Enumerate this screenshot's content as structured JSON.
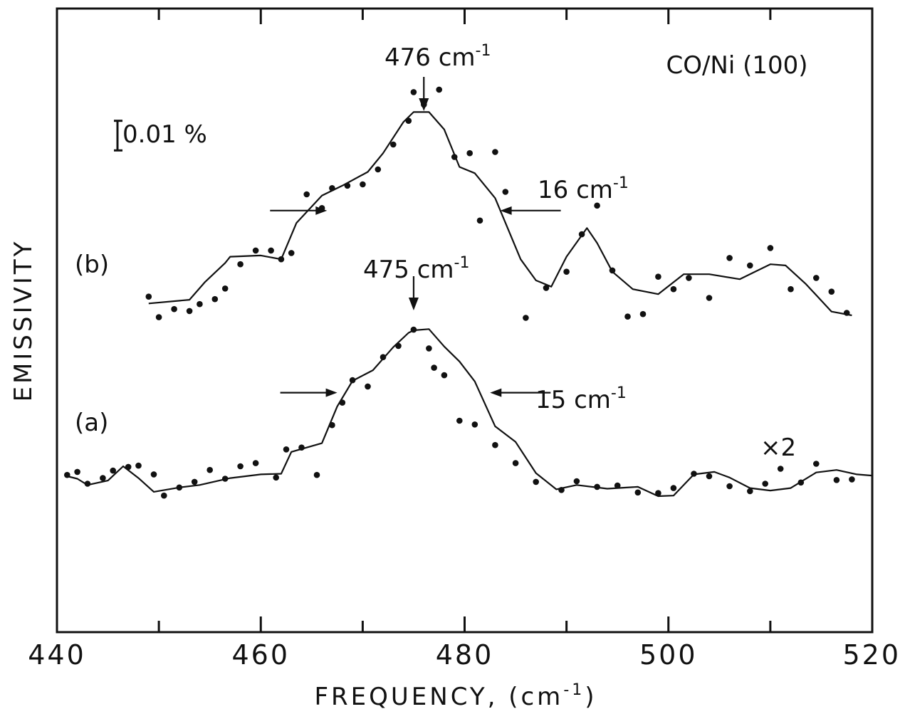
{
  "chart_data": {
    "type": "line",
    "title": "CO/Ni (100)",
    "xlabel": "FREQUENCY, (cm",
    "xlabel_sup": "-1",
    "xlabel_close": ")",
    "ylabel": "EMISSIVITY",
    "xlim": [
      440,
      520
    ],
    "ylim": [
      0,
      1
    ],
    "x_ticks": [
      "440",
      "460",
      "480",
      "500",
      "520"
    ],
    "x_tick_values": [
      440,
      460,
      480,
      500,
      520
    ],
    "x_minor_ticks": [
      450,
      470,
      490,
      510
    ],
    "grid": false,
    "scale_bar_label": "0.01 %",
    "scale_bar_value": 0.0475,
    "series": [
      {
        "name": "(b)",
        "peak_label": "476 cm",
        "peak_sup": "-1",
        "peak_x": 476,
        "width_label": "16 cm",
        "width_sup": "-1",
        "width_left_x": 466.5,
        "width_right_x": 483.5,
        "width_y": 0.676,
        "line": [
          [
            449,
            0.527
          ],
          [
            453,
            0.533
          ],
          [
            454.5,
            0.561
          ],
          [
            456.5,
            0.592
          ],
          [
            457,
            0.602
          ],
          [
            460,
            0.604
          ],
          [
            462,
            0.598
          ],
          [
            463.5,
            0.656
          ],
          [
            466,
            0.7
          ],
          [
            468,
            0.716
          ],
          [
            470.5,
            0.738
          ],
          [
            472,
            0.768
          ],
          [
            474,
            0.818
          ],
          [
            475,
            0.834
          ],
          [
            476.5,
            0.834
          ],
          [
            478,
            0.806
          ],
          [
            479.5,
            0.746
          ],
          [
            481,
            0.736
          ],
          [
            483,
            0.696
          ],
          [
            485.5,
            0.598
          ],
          [
            487,
            0.564
          ],
          [
            488.5,
            0.554
          ],
          [
            490,
            0.602
          ],
          [
            492,
            0.648
          ],
          [
            493,
            0.624
          ],
          [
            494.5,
            0.578
          ],
          [
            496.5,
            0.55
          ],
          [
            499,
            0.542
          ],
          [
            501.5,
            0.574
          ],
          [
            504,
            0.574
          ],
          [
            507,
            0.566
          ],
          [
            510,
            0.59
          ],
          [
            511.5,
            0.588
          ],
          [
            513.5,
            0.558
          ],
          [
            516,
            0.514
          ],
          [
            518,
            0.508
          ]
        ],
        "points": [
          [
            449,
            0.538
          ],
          [
            450,
            0.505
          ],
          [
            451.5,
            0.518
          ],
          [
            453,
            0.515
          ],
          [
            454,
            0.526
          ],
          [
            455.5,
            0.534
          ],
          [
            456.5,
            0.551
          ],
          [
            458,
            0.59
          ],
          [
            459.5,
            0.612
          ],
          [
            461,
            0.612
          ],
          [
            462,
            0.598
          ],
          [
            463,
            0.608
          ],
          [
            464.5,
            0.702
          ],
          [
            466,
            0.68
          ],
          [
            467,
            0.712
          ],
          [
            468.5,
            0.716
          ],
          [
            470,
            0.718
          ],
          [
            471.5,
            0.742
          ],
          [
            473,
            0.782
          ],
          [
            474.5,
            0.82
          ],
          [
            475,
            0.866
          ],
          [
            476,
            0.846
          ],
          [
            477.5,
            0.87
          ],
          [
            479,
            0.762
          ],
          [
            480.5,
            0.768
          ],
          [
            481.5,
            0.66
          ],
          [
            483,
            0.77
          ],
          [
            484,
            0.706
          ],
          [
            486,
            0.504
          ],
          [
            488,
            0.552
          ],
          [
            490,
            0.578
          ],
          [
            491.5,
            0.638
          ],
          [
            493,
            0.684
          ],
          [
            494.5,
            0.58
          ],
          [
            496,
            0.506
          ],
          [
            497.5,
            0.51
          ],
          [
            499,
            0.57
          ],
          [
            500.5,
            0.55
          ],
          [
            502,
            0.568
          ],
          [
            504,
            0.536
          ],
          [
            506,
            0.6
          ],
          [
            508,
            0.588
          ],
          [
            510,
            0.616
          ],
          [
            512,
            0.55
          ],
          [
            514.5,
            0.568
          ],
          [
            516,
            0.546
          ],
          [
            517.5,
            0.512
          ]
        ]
      },
      {
        "name": "(a)",
        "peak_label": "475 cm",
        "peak_sup": "-1",
        "peak_x": 475,
        "width_label": "15 cm",
        "width_sup": "-1",
        "width_left_x": 467.5,
        "width_right_x": 482.5,
        "width_y": 0.384,
        "multiplier_label": "×2",
        "line": [
          [
            441,
            0.25
          ],
          [
            442,
            0.246
          ],
          [
            443,
            0.236
          ],
          [
            445,
            0.243
          ],
          [
            446.5,
            0.266
          ],
          [
            448,
            0.247
          ],
          [
            449.5,
            0.225
          ],
          [
            452,
            0.232
          ],
          [
            454,
            0.236
          ],
          [
            457,
            0.247
          ],
          [
            460,
            0.253
          ],
          [
            462,
            0.254
          ],
          [
            463,
            0.289
          ],
          [
            466,
            0.303
          ],
          [
            467.5,
            0.362
          ],
          [
            469,
            0.403
          ],
          [
            471,
            0.42
          ],
          [
            473,
            0.457
          ],
          [
            474.5,
            0.48
          ],
          [
            475,
            0.484
          ],
          [
            476.5,
            0.486
          ],
          [
            478,
            0.458
          ],
          [
            479.5,
            0.434
          ],
          [
            481,
            0.402
          ],
          [
            483,
            0.33
          ],
          [
            485,
            0.305
          ],
          [
            487,
            0.255
          ],
          [
            489,
            0.229
          ],
          [
            491,
            0.236
          ],
          [
            494,
            0.23
          ],
          [
            497,
            0.233
          ],
          [
            499,
            0.218
          ],
          [
            500.5,
            0.219
          ],
          [
            502.5,
            0.253
          ],
          [
            504.5,
            0.257
          ],
          [
            506,
            0.248
          ],
          [
            508,
            0.231
          ],
          [
            510,
            0.227
          ],
          [
            512,
            0.231
          ],
          [
            514.5,
            0.256
          ],
          [
            516.5,
            0.26
          ],
          [
            518.5,
            0.253
          ],
          [
            520,
            0.251
          ]
        ],
        "points": [
          [
            441,
            0.252
          ],
          [
            442,
            0.257
          ],
          [
            443,
            0.238
          ],
          [
            444.5,
            0.247
          ],
          [
            445.5,
            0.259
          ],
          [
            447,
            0.265
          ],
          [
            448,
            0.267
          ],
          [
            449.5,
            0.253
          ],
          [
            450.5,
            0.219
          ],
          [
            452,
            0.232
          ],
          [
            453.5,
            0.241
          ],
          [
            455,
            0.26
          ],
          [
            456.5,
            0.246
          ],
          [
            458,
            0.266
          ],
          [
            459.5,
            0.271
          ],
          [
            461.5,
            0.248
          ],
          [
            462.5,
            0.293
          ],
          [
            464,
            0.296
          ],
          [
            465.5,
            0.252
          ],
          [
            467,
            0.332
          ],
          [
            468,
            0.368
          ],
          [
            469,
            0.404
          ],
          [
            470.5,
            0.394
          ],
          [
            472,
            0.441
          ],
          [
            473.5,
            0.459
          ],
          [
            475,
            0.485
          ],
          [
            476.5,
            0.455
          ],
          [
            477,
            0.424
          ],
          [
            478,
            0.412
          ],
          [
            479.5,
            0.339
          ],
          [
            481,
            0.333
          ],
          [
            483,
            0.3
          ],
          [
            485,
            0.271
          ],
          [
            487,
            0.241
          ],
          [
            489.5,
            0.228
          ],
          [
            491,
            0.242
          ],
          [
            493,
            0.233
          ],
          [
            495,
            0.235
          ],
          [
            497,
            0.224
          ],
          [
            499,
            0.223
          ],
          [
            500.5,
            0.231
          ],
          [
            502.5,
            0.254
          ],
          [
            504,
            0.25
          ],
          [
            506,
            0.234
          ],
          [
            508,
            0.226
          ],
          [
            509.5,
            0.238
          ],
          [
            511,
            0.262
          ],
          [
            513,
            0.24
          ],
          [
            514.5,
            0.27
          ],
          [
            516.5,
            0.244
          ],
          [
            518,
            0.245
          ]
        ]
      }
    ]
  }
}
